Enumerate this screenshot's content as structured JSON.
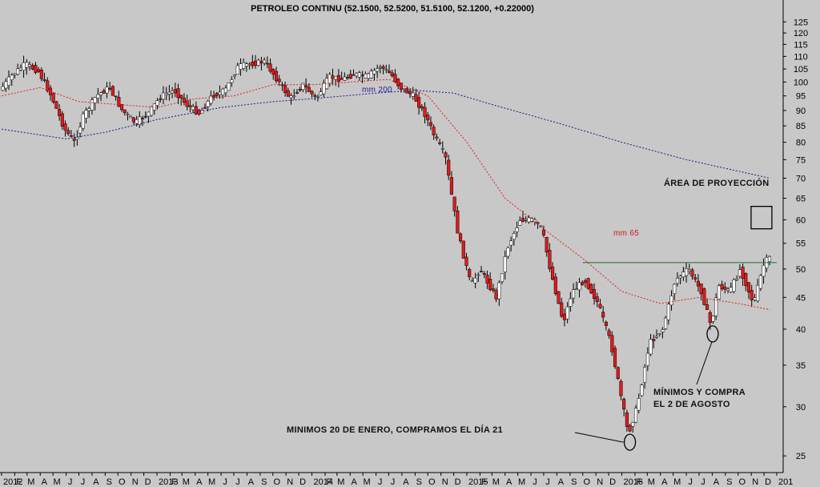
{
  "chart_data": {
    "type": "candlestick",
    "title": "PETROLEO CONTINU (52.1500, 52.5200, 51.5100, 52.1200, +0.22000)",
    "y_scale": "log",
    "ylim": [
      23.5,
      127
    ],
    "xlim": [
      "2012-01-01",
      "2016-12-31"
    ],
    "grid": false,
    "y_ticks": [
      25,
      30,
      35,
      40,
      45,
      50,
      55,
      60,
      65,
      70,
      75,
      80,
      85,
      90,
      95,
      100,
      105,
      110,
      115,
      120,
      125
    ],
    "x_ticks": [
      {
        "label": "2012",
        "date": "2012-01-01"
      },
      {
        "label": "F",
        "date": "2012-02-01"
      },
      {
        "label": "M",
        "date": "2012-03-01"
      },
      {
        "label": "A",
        "date": "2012-04-01"
      },
      {
        "label": "M",
        "date": "2012-05-01"
      },
      {
        "label": "J",
        "date": "2012-06-01"
      },
      {
        "label": "J",
        "date": "2012-07-01"
      },
      {
        "label": "A",
        "date": "2012-08-01"
      },
      {
        "label": "S",
        "date": "2012-09-01"
      },
      {
        "label": "O",
        "date": "2012-10-01"
      },
      {
        "label": "N",
        "date": "2012-11-01"
      },
      {
        "label": "D",
        "date": "2012-12-01"
      },
      {
        "label": "2013",
        "date": "2013-01-01"
      },
      {
        "label": "F",
        "date": "2013-02-01"
      },
      {
        "label": "M",
        "date": "2013-03-01"
      },
      {
        "label": "A",
        "date": "2013-04-01"
      },
      {
        "label": "M",
        "date": "2013-05-01"
      },
      {
        "label": "J",
        "date": "2013-06-01"
      },
      {
        "label": "J",
        "date": "2013-07-01"
      },
      {
        "label": "A",
        "date": "2013-08-01"
      },
      {
        "label": "S",
        "date": "2013-09-01"
      },
      {
        "label": "O",
        "date": "2013-10-01"
      },
      {
        "label": "N",
        "date": "2013-11-01"
      },
      {
        "label": "D",
        "date": "2013-12-01"
      },
      {
        "label": "2014",
        "date": "2014-01-01"
      },
      {
        "label": "F",
        "date": "2014-02-01"
      },
      {
        "label": "M",
        "date": "2014-03-01"
      },
      {
        "label": "A",
        "date": "2014-04-01"
      },
      {
        "label": "M",
        "date": "2014-05-01"
      },
      {
        "label": "J",
        "date": "2014-06-01"
      },
      {
        "label": "J",
        "date": "2014-07-01"
      },
      {
        "label": "A",
        "date": "2014-08-01"
      },
      {
        "label": "S",
        "date": "2014-09-01"
      },
      {
        "label": "O",
        "date": "2014-10-01"
      },
      {
        "label": "N",
        "date": "2014-11-01"
      },
      {
        "label": "D",
        "date": "2014-12-01"
      },
      {
        "label": "2015",
        "date": "2015-01-01"
      },
      {
        "label": "F",
        "date": "2015-02-01"
      },
      {
        "label": "M",
        "date": "2015-03-01"
      },
      {
        "label": "A",
        "date": "2015-04-01"
      },
      {
        "label": "M",
        "date": "2015-05-01"
      },
      {
        "label": "J",
        "date": "2015-06-01"
      },
      {
        "label": "J",
        "date": "2015-07-01"
      },
      {
        "label": "A",
        "date": "2015-08-01"
      },
      {
        "label": "S",
        "date": "2015-09-01"
      },
      {
        "label": "O",
        "date": "2015-10-01"
      },
      {
        "label": "N",
        "date": "2015-11-01"
      },
      {
        "label": "D",
        "date": "2015-12-01"
      },
      {
        "label": "2016",
        "date": "2016-01-01"
      },
      {
        "label": "F",
        "date": "2016-02-01"
      },
      {
        "label": "M",
        "date": "2016-03-01"
      },
      {
        "label": "A",
        "date": "2016-04-01"
      },
      {
        "label": "M",
        "date": "2016-05-01"
      },
      {
        "label": "J",
        "date": "2016-06-01"
      },
      {
        "label": "J",
        "date": "2016-07-01"
      },
      {
        "label": "A",
        "date": "2016-08-01"
      },
      {
        "label": "S",
        "date": "2016-09-01"
      },
      {
        "label": "O",
        "date": "2016-10-01"
      },
      {
        "label": "N",
        "date": "2016-11-01"
      },
      {
        "label": "D",
        "date": "2016-12-01"
      },
      {
        "label": "201",
        "date": "2016-12-31"
      }
    ],
    "price_path": [
      [
        "2012-01-01",
        97
      ],
      [
        "2012-02-01",
        103
      ],
      [
        "2012-03-01",
        107
      ],
      [
        "2012-04-01",
        104
      ],
      [
        "2012-05-01",
        95
      ],
      [
        "2012-06-01",
        84
      ],
      [
        "2012-06-25",
        80
      ],
      [
        "2012-07-15",
        88
      ],
      [
        "2012-08-15",
        95
      ],
      [
        "2012-09-15",
        98
      ],
      [
        "2012-10-15",
        90
      ],
      [
        "2012-11-15",
        86
      ],
      [
        "2012-12-15",
        89
      ],
      [
        "2013-01-15",
        95
      ],
      [
        "2013-02-15",
        97
      ],
      [
        "2013-03-15",
        92
      ],
      [
        "2013-04-15",
        89
      ],
      [
        "2013-05-15",
        95
      ],
      [
        "2013-06-15",
        97
      ],
      [
        "2013-07-15",
        106
      ],
      [
        "2013-08-15",
        107
      ],
      [
        "2013-09-15",
        108
      ],
      [
        "2013-10-15",
        101
      ],
      [
        "2013-11-15",
        94
      ],
      [
        "2013-12-15",
        99
      ],
      [
        "2014-01-15",
        94
      ],
      [
        "2014-02-15",
        102
      ],
      [
        "2014-03-15",
        101
      ],
      [
        "2014-04-15",
        103
      ],
      [
        "2014-05-15",
        102
      ],
      [
        "2014-06-15",
        106
      ],
      [
        "2014-07-10",
        103
      ],
      [
        "2014-08-01",
        98
      ],
      [
        "2014-09-01",
        95
      ],
      [
        "2014-10-01",
        88
      ],
      [
        "2014-10-20",
        82
      ],
      [
        "2014-11-15",
        76
      ],
      [
        "2014-12-15",
        57
      ],
      [
        "2015-01-15",
        47
      ],
      [
        "2015-02-05",
        50
      ],
      [
        "2015-03-15",
        45
      ],
      [
        "2015-04-10",
        54
      ],
      [
        "2015-05-10",
        60
      ],
      [
        "2015-06-10",
        60
      ],
      [
        "2015-07-01",
        58
      ],
      [
        "2015-07-20",
        50
      ],
      [
        "2015-08-20",
        41
      ],
      [
        "2015-09-10",
        46
      ],
      [
        "2015-10-10",
        48
      ],
      [
        "2015-11-10",
        44
      ],
      [
        "2015-12-10",
        38
      ],
      [
        "2016-01-20",
        27.1
      ],
      [
        "2016-02-10",
        30
      ],
      [
        "2016-03-10",
        38
      ],
      [
        "2016-04-10",
        40
      ],
      [
        "2016-05-10",
        48
      ],
      [
        "2016-06-10",
        50
      ],
      [
        "2016-07-10",
        46
      ],
      [
        "2016-08-02",
        40.5
      ],
      [
        "2016-08-20",
        47
      ],
      [
        "2016-09-15",
        46
      ],
      [
        "2016-10-10",
        50
      ],
      [
        "2016-11-10",
        44
      ],
      [
        "2016-12-05",
        51
      ],
      [
        "2016-12-15",
        52.1
      ]
    ],
    "series": [
      {
        "name": "mm 200",
        "style": "dotted",
        "color": "#1a1a80",
        "points": [
          [
            "2012-01-01",
            84
          ],
          [
            "2012-06-01",
            81
          ],
          [
            "2012-09-01",
            83
          ],
          [
            "2013-01-01",
            87
          ],
          [
            "2013-06-01",
            91
          ],
          [
            "2013-10-01",
            93
          ],
          [
            "2014-01-01",
            94
          ],
          [
            "2014-06-01",
            96
          ],
          [
            "2014-09-01",
            97
          ],
          [
            "2014-12-01",
            96
          ],
          [
            "2015-03-01",
            92
          ],
          [
            "2015-08-01",
            86
          ],
          [
            "2016-01-01",
            80
          ],
          [
            "2016-06-01",
            75
          ],
          [
            "2016-12-15",
            70
          ]
        ]
      },
      {
        "name": "mm 65",
        "style": "dotted",
        "color": "#e02020",
        "points": [
          [
            "2012-01-01",
            95
          ],
          [
            "2012-04-01",
            98
          ],
          [
            "2012-07-01",
            93
          ],
          [
            "2012-10-01",
            92
          ],
          [
            "2013-01-01",
            91
          ],
          [
            "2013-04-01",
            94
          ],
          [
            "2013-07-01",
            95
          ],
          [
            "2013-10-01",
            99
          ],
          [
            "2014-01-01",
            99
          ],
          [
            "2014-04-01",
            100
          ],
          [
            "2014-07-01",
            101
          ],
          [
            "2014-10-01",
            95
          ],
          [
            "2015-01-01",
            80
          ],
          [
            "2015-04-01",
            65
          ],
          [
            "2015-07-01",
            58
          ],
          [
            "2015-10-01",
            52
          ],
          [
            "2016-01-01",
            46
          ],
          [
            "2016-04-01",
            44
          ],
          [
            "2016-07-01",
            45
          ],
          [
            "2016-10-01",
            44
          ],
          [
            "2016-12-15",
            43
          ]
        ]
      }
    ],
    "resistance_line": {
      "start": "2015-10-01",
      "end": "2016-12-31",
      "value": 51.2,
      "color": "#2a7a3a"
    },
    "bullish_color": "#ffffff",
    "bearish_color": "#e41a1a",
    "annotations": [
      {
        "text": "ÁREA DE PROYECCIÓN"
      },
      {
        "text": "mm 200"
      },
      {
        "text": "mm 65"
      },
      {
        "text": "MÍNIMOS Y COMPRA"
      },
      {
        "text": "EL 2 DE AGOSTO"
      },
      {
        "text": "MINIMOS 20 DE ENERO, COMPRAMOS EL DÍA 21"
      }
    ],
    "markers": [
      {
        "date": "2016-01-20",
        "value": 26.3,
        "shape": "ellipse"
      },
      {
        "date": "2016-08-02",
        "value": 39.3,
        "shape": "ellipse"
      },
      {
        "date": "2016-11-25",
        "value": 60.5,
        "shape": "square"
      }
    ]
  }
}
